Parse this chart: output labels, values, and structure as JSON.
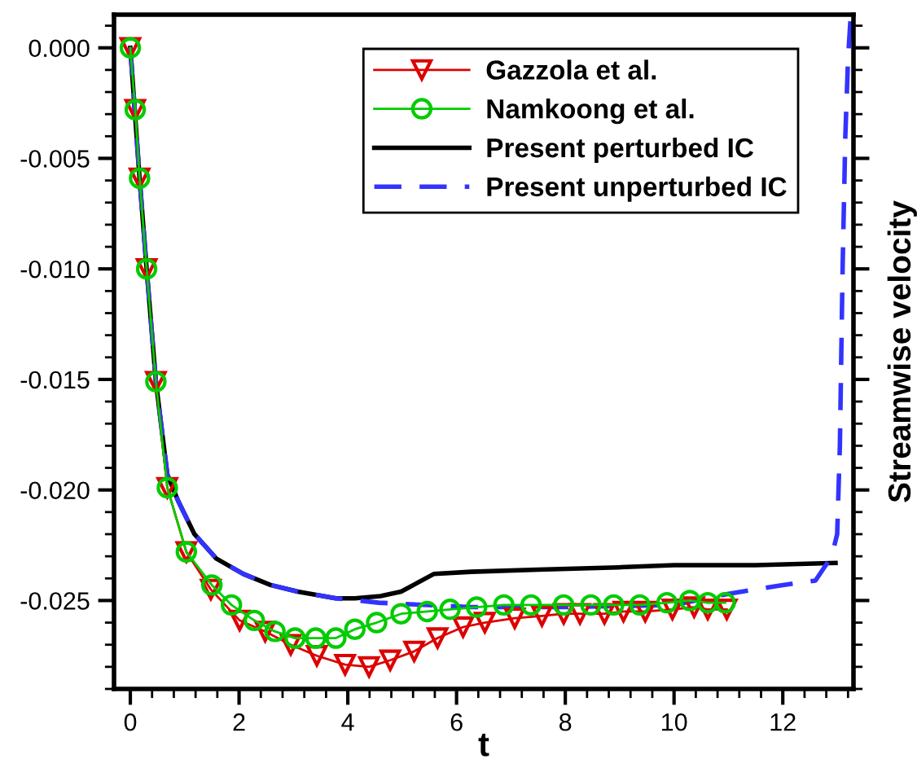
{
  "chart_data": {
    "type": "line",
    "xlabel": "t",
    "ylabel": "Streamwise velocity",
    "xlim": [
      -0.3,
      13.3
    ],
    "ylim": [
      -0.029,
      0.0015
    ],
    "xticks": [
      0,
      2,
      4,
      6,
      8,
      10,
      12
    ],
    "yticks": [
      {
        "value": 0,
        "label": "0.000"
      },
      {
        "value": -0.005,
        "label": "-0.005"
      },
      {
        "value": -0.01,
        "label": "-0.010"
      },
      {
        "value": -0.015,
        "label": "-0.015"
      },
      {
        "value": -0.02,
        "label": "-0.020"
      },
      {
        "value": -0.025,
        "label": "-0.025"
      }
    ],
    "grid": false,
    "legend": "top right",
    "series": [
      {
        "name": "Gazzola et al.",
        "color": "#dd0000",
        "marker": "triangle",
        "line_style": "solid",
        "x": [
          0,
          0.09,
          0.17,
          0.3,
          0.47,
          0.68,
          1.03,
          1.48,
          2.01,
          2.48,
          2.95,
          3.43,
          3.95,
          4.39,
          4.78,
          5.22,
          5.65,
          6.12,
          6.52,
          7.07,
          7.57,
          7.97,
          8.27,
          8.72,
          9.07,
          9.47,
          9.97,
          10.37,
          10.62,
          10.97
        ],
        "values": [
          0,
          -0.0028,
          -0.0059,
          -0.01,
          -0.0151,
          -0.0199,
          -0.0228,
          -0.0245,
          -0.0259,
          -0.0264,
          -0.027,
          -0.0275,
          -0.0279,
          -0.028,
          -0.0277,
          -0.0273,
          -0.0267,
          -0.0262,
          -0.026,
          -0.0258,
          -0.0257,
          -0.0256,
          -0.0256,
          -0.0256,
          -0.0255,
          -0.0255,
          -0.0254,
          -0.0253,
          -0.0254,
          -0.0254
        ]
      },
      {
        "name": "Namkoong et al.",
        "color": "#00cc00",
        "marker": "circle",
        "line_style": "solid",
        "x": [
          0,
          0.09,
          0.17,
          0.3,
          0.47,
          0.68,
          1.03,
          1.5,
          1.86,
          2.28,
          2.66,
          3.03,
          3.41,
          3.78,
          4.13,
          4.53,
          4.98,
          5.46,
          5.88,
          6.37,
          6.87,
          7.37,
          7.97,
          8.47,
          8.89,
          9.37,
          9.87,
          10.29,
          10.62,
          10.94
        ],
        "values": [
          0,
          -0.0028,
          -0.0059,
          -0.01,
          -0.0151,
          -0.0199,
          -0.0228,
          -0.0243,
          -0.0252,
          -0.0259,
          -0.0264,
          -0.0267,
          -0.0267,
          -0.0267,
          -0.0263,
          -0.026,
          -0.0256,
          -0.0255,
          -0.0254,
          -0.0253,
          -0.0252,
          -0.0252,
          -0.0252,
          -0.0252,
          -0.0252,
          -0.0252,
          -0.0251,
          -0.025,
          -0.0251,
          -0.0251
        ]
      },
      {
        "name": "Present perturbed IC",
        "color": "#000000",
        "marker": "none",
        "line_style": "solid",
        "x": [
          0,
          0.17,
          0.3,
          0.47,
          0.68,
          0.88,
          1.18,
          1.58,
          2.08,
          2.58,
          3.08,
          3.78,
          4.13,
          4.6,
          4.98,
          5.58,
          6.27,
          7.5,
          8.97,
          10,
          11.5,
          12.97
        ],
        "values": [
          0,
          -0.0059,
          -0.01,
          -0.0151,
          -0.0193,
          -0.0205,
          -0.022,
          -0.0231,
          -0.0238,
          -0.0243,
          -0.0246,
          -0.0249,
          -0.0249,
          -0.0248,
          -0.0246,
          -0.0238,
          -0.0237,
          -0.0236,
          -0.0235,
          -0.0234,
          -0.0234,
          -0.0233
        ]
      },
      {
        "name": "Present unperturbed IC",
        "color": "#3333ff",
        "marker": "none",
        "line_style": "dashed",
        "x": [
          0,
          0.17,
          0.3,
          0.47,
          0.68,
          0.88,
          1.18,
          1.58,
          2.08,
          2.58,
          3.08,
          3.78,
          4.57,
          6.27,
          8,
          10,
          11,
          12,
          12.6,
          12.9,
          13.0,
          13.05,
          13.1,
          13.15,
          13.2,
          13.25
        ],
        "values": [
          0,
          -0.0059,
          -0.01,
          -0.0151,
          -0.0193,
          -0.0205,
          -0.022,
          -0.0231,
          -0.0238,
          -0.0243,
          -0.0246,
          -0.0249,
          -0.0251,
          -0.0253,
          -0.0253,
          -0.0252,
          -0.0247,
          -0.0243,
          -0.0241,
          -0.023,
          -0.022,
          -0.018,
          -0.01,
          -0.004,
          -0.0005,
          0.0015
        ]
      }
    ]
  }
}
